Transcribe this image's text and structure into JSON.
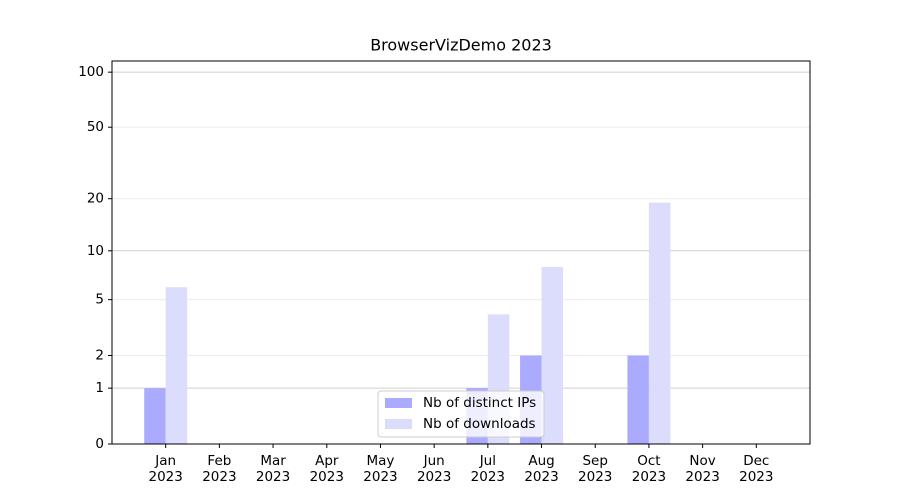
{
  "chart_data": {
    "type": "bar",
    "title": "BrowserVizDemo 2023",
    "yscale": "log1p",
    "categories": [
      "Jan\n2023",
      "Feb\n2023",
      "Mar\n2023",
      "Apr\n2023",
      "May\n2023",
      "Jun\n2023",
      "Jul\n2023",
      "Aug\n2023",
      "Sep\n2023",
      "Oct\n2023",
      "Nov\n2023",
      "Dec\n2023"
    ],
    "series": [
      {
        "name": "Nb of distinct IPs",
        "color": "#aaaaff",
        "values": [
          1,
          0,
          0,
          0,
          0,
          0,
          1,
          2,
          0,
          2,
          0,
          0
        ]
      },
      {
        "name": "Nb of downloads",
        "color": "#dcdcfc",
        "values": [
          6,
          0,
          0,
          0,
          0,
          0,
          4,
          8,
          0,
          19,
          0,
          0
        ]
      }
    ],
    "ylim": [
      0,
      115
    ],
    "yticks": [
      0,
      1,
      2,
      5,
      10,
      20,
      50,
      100
    ],
    "grid": true,
    "legend": "lower center"
  }
}
